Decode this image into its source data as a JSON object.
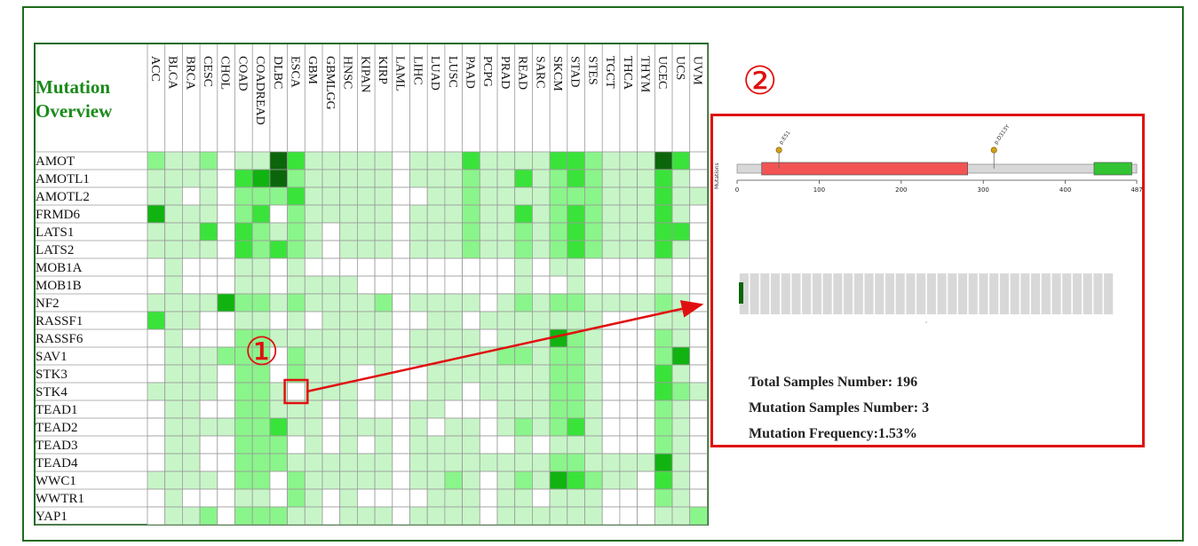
{
  "heatmap": {
    "title_line1": "Mutation",
    "title_line2": "Overview",
    "columns": [
      "ACC",
      "BLCA",
      "BRCA",
      "CESC",
      "CHOL",
      "COAD",
      "COADREAD",
      "DLBC",
      "ESCA",
      "GBM",
      "GBMLGG",
      "HNSC",
      "KIPAN",
      "KIRP",
      "LAML",
      "LIHC",
      "LUAD",
      "LUSC",
      "PAAD",
      "PCPG",
      "PRAD",
      "READ",
      "SARC",
      "SKCM",
      "STAD",
      "STES",
      "TGCT",
      "THCA",
      "THYM",
      "UCEC",
      "UCS",
      "UVM"
    ],
    "rows": [
      "AMOT",
      "AMOTL1",
      "AMOTL2",
      "FRMD6",
      "LATS1",
      "LATS2",
      "MOB1A",
      "MOB1B",
      "NF2",
      "RASSF1",
      "RASSF6",
      "SAV1",
      "STK3",
      "STK4",
      "TEAD1",
      "TEAD2",
      "TEAD3",
      "TEAD4",
      "WWC1",
      "WWTR1",
      "YAP1"
    ],
    "levels": [
      [
        2,
        1,
        1,
        2,
        0,
        1,
        1,
        5,
        3,
        1,
        1,
        1,
        1,
        1,
        0,
        1,
        1,
        1,
        3,
        1,
        1,
        1,
        1,
        3,
        3,
        2,
        1,
        1,
        1,
        5,
        3,
        0
      ],
      [
        1,
        1,
        1,
        1,
        0,
        3,
        4,
        5,
        2,
        1,
        1,
        1,
        1,
        1,
        0,
        1,
        1,
        1,
        2,
        1,
        1,
        3,
        1,
        2,
        3,
        2,
        1,
        1,
        1,
        3,
        1,
        0
      ],
      [
        1,
        1,
        0,
        1,
        0,
        2,
        2,
        2,
        3,
        1,
        1,
        1,
        1,
        1,
        0,
        0,
        1,
        1,
        2,
        1,
        1,
        1,
        1,
        2,
        2,
        2,
        1,
        1,
        1,
        3,
        1,
        1
      ],
      [
        4,
        1,
        1,
        1,
        0,
        2,
        3,
        0,
        2,
        1,
        1,
        1,
        1,
        1,
        0,
        1,
        1,
        1,
        2,
        1,
        1,
        3,
        1,
        2,
        3,
        2,
        1,
        1,
        1,
        3,
        1,
        0
      ],
      [
        1,
        1,
        1,
        3,
        0,
        3,
        2,
        1,
        2,
        1,
        0,
        1,
        1,
        1,
        0,
        1,
        1,
        1,
        2,
        1,
        1,
        2,
        1,
        2,
        3,
        2,
        1,
        1,
        1,
        3,
        3,
        0
      ],
      [
        1,
        1,
        1,
        1,
        0,
        3,
        2,
        3,
        2,
        1,
        0,
        1,
        1,
        1,
        0,
        1,
        1,
        1,
        2,
        1,
        1,
        2,
        1,
        2,
        3,
        2,
        1,
        1,
        1,
        3,
        1,
        0
      ],
      [
        0,
        1,
        0,
        0,
        0,
        1,
        1,
        0,
        1,
        0,
        0,
        0,
        0,
        0,
        0,
        0,
        0,
        0,
        0,
        0,
        0,
        1,
        0,
        1,
        1,
        0,
        0,
        0,
        0,
        1,
        0,
        0
      ],
      [
        0,
        1,
        0,
        0,
        0,
        1,
        1,
        0,
        1,
        1,
        1,
        1,
        0,
        0,
        0,
        0,
        0,
        0,
        0,
        0,
        0,
        1,
        0,
        0,
        1,
        0,
        0,
        0,
        0,
        1,
        0,
        0
      ],
      [
        1,
        1,
        1,
        1,
        4,
        2,
        2,
        1,
        2,
        1,
        1,
        1,
        1,
        2,
        0,
        1,
        1,
        1,
        1,
        0,
        1,
        2,
        1,
        2,
        2,
        1,
        1,
        1,
        1,
        2,
        1,
        0
      ],
      [
        3,
        1,
        1,
        0,
        0,
        1,
        1,
        0,
        1,
        0,
        1,
        1,
        1,
        1,
        0,
        0,
        1,
        1,
        0,
        1,
        1,
        1,
        1,
        1,
        1,
        1,
        0,
        0,
        0,
        1,
        1,
        0
      ],
      [
        0,
        1,
        0,
        0,
        0,
        2,
        2,
        1,
        1,
        1,
        1,
        1,
        1,
        1,
        0,
        1,
        1,
        1,
        1,
        0,
        1,
        1,
        1,
        4,
        2,
        1,
        0,
        0,
        0,
        2,
        1,
        0
      ],
      [
        0,
        1,
        1,
        1,
        2,
        2,
        2,
        0,
        2,
        1,
        1,
        1,
        1,
        1,
        0,
        1,
        1,
        1,
        1,
        1,
        2,
        2,
        1,
        2,
        2,
        1,
        0,
        0,
        0,
        2,
        4,
        0
      ],
      [
        0,
        1,
        1,
        1,
        0,
        2,
        2,
        0,
        2,
        1,
        1,
        1,
        0,
        1,
        0,
        0,
        1,
        1,
        1,
        1,
        1,
        1,
        1,
        2,
        2,
        1,
        0,
        0,
        0,
        3,
        1,
        0
      ],
      [
        1,
        1,
        1,
        1,
        0,
        2,
        2,
        1,
        0,
        1,
        1,
        1,
        0,
        1,
        0,
        0,
        1,
        1,
        0,
        1,
        1,
        1,
        1,
        2,
        2,
        1,
        0,
        0,
        0,
        3,
        2,
        1
      ],
      [
        0,
        1,
        1,
        0,
        0,
        2,
        2,
        1,
        1,
        1,
        0,
        1,
        0,
        0,
        0,
        1,
        1,
        0,
        0,
        0,
        1,
        1,
        1,
        2,
        2,
        1,
        0,
        0,
        0,
        2,
        1,
        0
      ],
      [
        0,
        1,
        1,
        1,
        1,
        2,
        2,
        3,
        1,
        1,
        0,
        1,
        1,
        1,
        0,
        1,
        0,
        1,
        1,
        0,
        1,
        2,
        1,
        2,
        3,
        1,
        0,
        0,
        0,
        2,
        1,
        0
      ],
      [
        0,
        1,
        1,
        0,
        0,
        2,
        2,
        2,
        0,
        1,
        0,
        1,
        0,
        1,
        0,
        1,
        1,
        1,
        1,
        0,
        0,
        1,
        0,
        1,
        1,
        1,
        0,
        0,
        0,
        2,
        1,
        0
      ],
      [
        0,
        1,
        1,
        0,
        0,
        2,
        2,
        2,
        1,
        1,
        1,
        1,
        1,
        1,
        0,
        1,
        1,
        1,
        1,
        1,
        1,
        1,
        1,
        2,
        2,
        1,
        1,
        1,
        1,
        4,
        1,
        0
      ],
      [
        1,
        1,
        1,
        1,
        0,
        2,
        2,
        0,
        2,
        1,
        1,
        1,
        1,
        1,
        0,
        1,
        1,
        2,
        1,
        0,
        1,
        2,
        1,
        4,
        3,
        2,
        1,
        1,
        0,
        3,
        1,
        0
      ],
      [
        0,
        1,
        0,
        0,
        0,
        1,
        1,
        0,
        2,
        1,
        0,
        1,
        0,
        0,
        0,
        0,
        1,
        1,
        1,
        0,
        1,
        1,
        0,
        1,
        1,
        1,
        0,
        0,
        0,
        2,
        1,
        0
      ],
      [
        0,
        1,
        1,
        2,
        0,
        2,
        2,
        2,
        1,
        1,
        0,
        1,
        1,
        1,
        0,
        1,
        1,
        1,
        1,
        0,
        1,
        1,
        1,
        1,
        1,
        1,
        0,
        0,
        0,
        1,
        1,
        2
      ]
    ],
    "palette": [
      "#ffffff",
      "#c7f5c7",
      "#8af58a",
      "#3ae33a",
      "#11b311",
      "#0b660b"
    ],
    "highlight_row": "STK4",
    "highlight_column": "ESCA"
  },
  "callouts": {
    "one": "①",
    "two": "②"
  },
  "lollipop": {
    "y_label": "Mutations",
    "protein_length": 487,
    "ticks": [
      0,
      100,
      200,
      300,
      400,
      487
    ],
    "domains": [
      {
        "start": 30,
        "end": 281,
        "color": "#f25454"
      },
      {
        "start": 435,
        "end": 481,
        "color": "#33c433"
      }
    ],
    "mutations": [
      {
        "label": "p.E51",
        "position": 51
      },
      {
        "label": "p.D313Y",
        "position": 313
      }
    ]
  },
  "stats": {
    "total": "Total Samples Number: 196",
    "mutated": "Mutation Samples Number: 3",
    "frequency": "Mutation Frequency:1.53%"
  },
  "sample_strip": {
    "mutated_count": 3,
    "total_count": 196,
    "mutated_color": "#0b660b",
    "wt_color": "#d8d8d8"
  },
  "colors": {
    "frame": "#1e6b1e",
    "accent_red": "#e01010",
    "title_green": "#1a8a1a"
  }
}
